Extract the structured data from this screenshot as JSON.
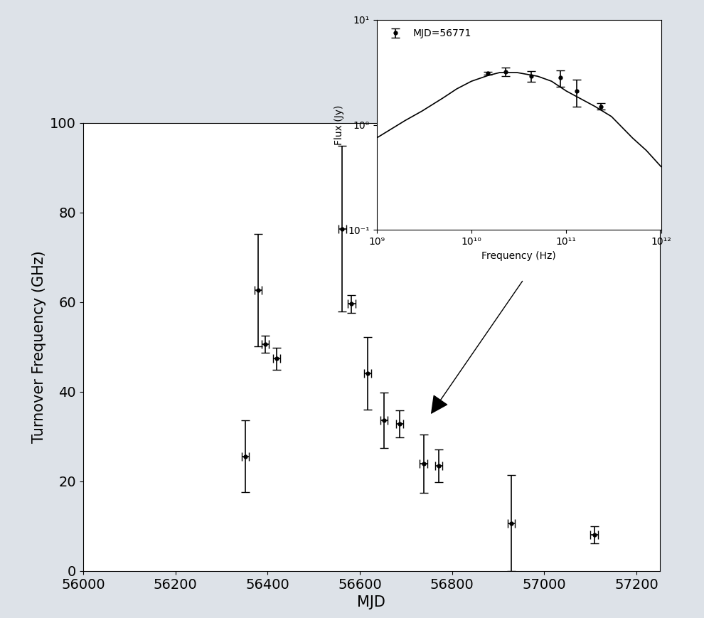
{
  "chart_data": [
    {
      "type": "scatter",
      "x_label": "MJD",
      "y_label": "Turnover Frequency (GHz)",
      "x": [
        56352,
        56380,
        56395,
        56420,
        56562,
        56582,
        56617,
        56652,
        56686,
        56738,
        56771,
        56928,
        57108
      ],
      "values": [
        25.6,
        62.7,
        50.6,
        47.4,
        76.4,
        59.6,
        44.1,
        33.7,
        32.8,
        23.9,
        23.5,
        10.7,
        8.1
      ],
      "x_err": [
        8,
        8,
        8,
        8,
        8,
        8,
        8,
        8,
        8,
        8,
        8,
        8,
        8
      ],
      "y_err": [
        8.0,
        12.5,
        1.9,
        2.5,
        18.5,
        2.0,
        8.1,
        6.2,
        3.0,
        6.5,
        3.7,
        10.7,
        1.9
      ],
      "color": "black",
      "marker": "o",
      "xlim": [
        56000,
        57250
      ],
      "xticks": [
        56000,
        56200,
        56400,
        56600,
        56800,
        57000,
        57200
      ],
      "ylim": [
        0,
        100
      ],
      "yticks": [
        0,
        20,
        40,
        60,
        80,
        100
      ]
    },
    {
      "type": "scatter",
      "log": true,
      "x_label": "Frequency (Hz)",
      "y_label": "Flux (Jy)",
      "legend": "upper left",
      "series": [
        {
          "name": "MJD=56771",
          "type": "scatter",
          "color": "black",
          "marker": "o",
          "x": [
            15000000000.0,
            23000000000.0,
            43000000000.0,
            86000000000.0,
            130000000000.0,
            230000000000.0
          ],
          "values": [
            3.1,
            3.2,
            2.9,
            2.8,
            2.1,
            1.5
          ],
          "y_err": [
            0.1,
            0.3,
            0.35,
            0.5,
            0.6,
            0.1
          ]
        },
        {
          "type": "line",
          "color": "black",
          "line_style": "solid",
          "x": [
            1000000000.0,
            2000000000.0,
            3000000000.0,
            5000000000.0,
            7000000000.0,
            10000000000.0,
            15000000000.0,
            20000000000.0,
            30000000000.0,
            50000000000.0,
            70000000000.0,
            100000000000.0,
            200000000000.0,
            300000000000.0,
            500000000000.0,
            700000000000.0,
            1000000000000.0
          ],
          "values": [
            0.75,
            1.1,
            1.35,
            1.8,
            2.2,
            2.6,
            2.95,
            3.15,
            3.15,
            2.9,
            2.6,
            2.1,
            1.5,
            1.2,
            0.75,
            0.57,
            0.4
          ]
        }
      ],
      "xlim": [
        1000000000.0,
        1000000000000.0
      ],
      "xticks": [
        {
          "value": 1000000000.0,
          "label": "10⁹"
        },
        {
          "value": 10000000000.0,
          "label": "10¹⁰"
        },
        {
          "value": 100000000000.0,
          "label": "10¹¹"
        },
        {
          "value": 1000000000000.0,
          "label": "10¹²"
        }
      ],
      "ylim": [
        0.1,
        10
      ],
      "yticks": [
        {
          "value": 0.1,
          "label": "10⁻¹"
        },
        {
          "value": 1,
          "label": "10⁰"
        },
        {
          "value": 10,
          "label": "10¹"
        }
      ]
    }
  ]
}
